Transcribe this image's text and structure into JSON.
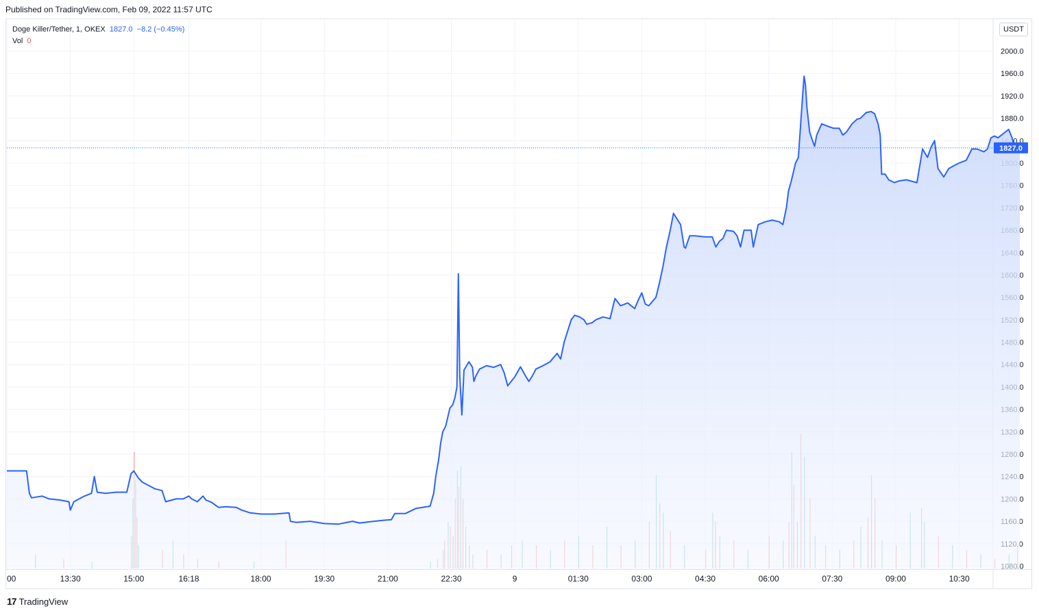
{
  "header": {
    "published_text": "Published on TradingView.com, Feb 09, 2022 11:57 UTC"
  },
  "legend": {
    "symbol": "Doge Killer/Tether, 1, OKEX",
    "last": "1827.0",
    "change": "−8.2 (−0.45%)",
    "vol_label": "Vol",
    "vol_value": "0"
  },
  "unit_button": "USDT",
  "footer": {
    "logo": "17",
    "brand": "TradingView"
  },
  "colors": {
    "line": "#2962ff",
    "area_top": "#c9d8fb",
    "area_bottom": "#f3f6ff",
    "vol_up": "#26a69a",
    "vol_down": "#ef5350",
    "grid": "#f0f3fa",
    "price_label_bg": "#2962ff"
  },
  "chart_data": {
    "type": "area",
    "title": "Doge Killer/Tether, 1, OKEX",
    "ylabel": "USDT",
    "ylim": [
      1080,
      2010
    ],
    "y_ticks": [
      1080.0,
      1120.0,
      1160.0,
      1200.0,
      1240.0,
      1280.0,
      1320.0,
      1360.0,
      1400.0,
      1440.0,
      1480.0,
      1520.0,
      1560.0,
      1600.0,
      1640.0,
      1680.0,
      1720.0,
      1760.0,
      1800.0,
      1840.0,
      1880.0,
      1920.0,
      1960.0,
      2000.0
    ],
    "y_tick_labels": [
      "1080.0",
      "1120.0",
      "1160.0",
      "1200.0",
      "1240.0",
      "1280.0",
      "1320.0",
      "1360.0",
      "1400.0",
      "1440.0",
      "1480.0",
      "1520.0",
      "1560.0",
      "1600.0",
      "1640.0",
      "1680.0",
      "1720.0",
      "1760.0",
      "1800.0",
      "1840.0",
      "1880.0",
      "1920.0",
      "1960.0",
      "2000.0"
    ],
    "x_unit": "minutes since Feb 08 12:00 UTC",
    "xlim": [
      0,
      1397
    ],
    "x_ticks": [
      {
        "t": 0,
        "label": "00"
      },
      {
        "t": 90,
        "label": "13:30"
      },
      {
        "t": 180,
        "label": "15:00"
      },
      {
        "t": 258,
        "label": "16:18"
      },
      {
        "t": 360,
        "label": "18:00"
      },
      {
        "t": 450,
        "label": "19:30"
      },
      {
        "t": 540,
        "label": "21:00"
      },
      {
        "t": 630,
        "label": "22:30"
      },
      {
        "t": 720,
        "label": "9"
      },
      {
        "t": 810,
        "label": "01:30"
      },
      {
        "t": 900,
        "label": "03:00"
      },
      {
        "t": 990,
        "label": "04:30"
      },
      {
        "t": 1080,
        "label": "06:00"
      },
      {
        "t": 1170,
        "label": "07:30"
      },
      {
        "t": 1260,
        "label": "09:00"
      },
      {
        "t": 1350,
        "label": "10:30"
      }
    ],
    "last_price": 1827.0,
    "last_price_label": "1827.0",
    "series": [
      {
        "points": [
          [
            0,
            1250
          ],
          [
            15,
            1250
          ],
          [
            28,
            1250
          ],
          [
            32,
            1210
          ],
          [
            35,
            1202
          ],
          [
            50,
            1205
          ],
          [
            60,
            1200
          ],
          [
            75,
            1198
          ],
          [
            88,
            1195
          ],
          [
            90,
            1180
          ],
          [
            95,
            1195
          ],
          [
            110,
            1205
          ],
          [
            120,
            1210
          ],
          [
            124,
            1240
          ],
          [
            128,
            1212
          ],
          [
            140,
            1210
          ],
          [
            155,
            1212
          ],
          [
            170,
            1212
          ],
          [
            176,
            1245
          ],
          [
            180,
            1250
          ],
          [
            186,
            1238
          ],
          [
            192,
            1230
          ],
          [
            210,
            1218
          ],
          [
            220,
            1215
          ],
          [
            225,
            1195
          ],
          [
            240,
            1200
          ],
          [
            250,
            1200
          ],
          [
            258,
            1205
          ],
          [
            262,
            1200
          ],
          [
            270,
            1195
          ],
          [
            278,
            1205
          ],
          [
            282,
            1198
          ],
          [
            290,
            1194
          ],
          [
            300,
            1185
          ],
          [
            310,
            1186
          ],
          [
            325,
            1185
          ],
          [
            333,
            1180
          ],
          [
            345,
            1175
          ],
          [
            360,
            1173
          ],
          [
            380,
            1173
          ],
          [
            400,
            1175
          ],
          [
            402,
            1160
          ],
          [
            410,
            1158
          ],
          [
            430,
            1160
          ],
          [
            450,
            1156
          ],
          [
            470,
            1155
          ],
          [
            490,
            1160
          ],
          [
            500,
            1157
          ],
          [
            520,
            1160
          ],
          [
            535,
            1162
          ],
          [
            545,
            1163
          ],
          [
            550,
            1174
          ],
          [
            565,
            1174
          ],
          [
            580,
            1183
          ],
          [
            595,
            1186
          ],
          [
            600,
            1187
          ],
          [
            605,
            1210
          ],
          [
            608,
            1240
          ],
          [
            612,
            1270
          ],
          [
            615,
            1300
          ],
          [
            618,
            1320
          ],
          [
            622,
            1330
          ],
          [
            628,
            1362
          ],
          [
            632,
            1368
          ],
          [
            635,
            1380
          ],
          [
            638,
            1400
          ],
          [
            640,
            1602
          ],
          [
            642,
            1420
          ],
          [
            645,
            1350
          ],
          [
            648,
            1430
          ],
          [
            655,
            1445
          ],
          [
            660,
            1435
          ],
          [
            662,
            1410
          ],
          [
            665,
            1420
          ],
          [
            670,
            1432
          ],
          [
            680,
            1438
          ],
          [
            690,
            1435
          ],
          [
            700,
            1440
          ],
          [
            705,
            1425
          ],
          [
            710,
            1402
          ],
          [
            715,
            1410
          ],
          [
            720,
            1418
          ],
          [
            728,
            1436
          ],
          [
            735,
            1420
          ],
          [
            740,
            1410
          ],
          [
            745,
            1420
          ],
          [
            750,
            1432
          ],
          [
            760,
            1438
          ],
          [
            770,
            1445
          ],
          [
            780,
            1460
          ],
          [
            785,
            1450
          ],
          [
            790,
            1480
          ],
          [
            795,
            1500
          ],
          [
            800,
            1520
          ],
          [
            805,
            1528
          ],
          [
            812,
            1525
          ],
          [
            818,
            1520
          ],
          [
            822,
            1512
          ],
          [
            830,
            1515
          ],
          [
            835,
            1520
          ],
          [
            845,
            1525
          ],
          [
            855,
            1522
          ],
          [
            862,
            1558
          ],
          [
            870,
            1545
          ],
          [
            880,
            1550
          ],
          [
            890,
            1540
          ],
          [
            895,
            1555
          ],
          [
            900,
            1568
          ],
          [
            905,
            1548
          ],
          [
            910,
            1545
          ],
          [
            920,
            1560
          ],
          [
            925,
            1585
          ],
          [
            930,
            1615
          ],
          [
            935,
            1650
          ],
          [
            940,
            1678
          ],
          [
            945,
            1710
          ],
          [
            950,
            1700
          ],
          [
            955,
            1690
          ],
          [
            960,
            1650
          ],
          [
            962,
            1648
          ],
          [
            968,
            1670
          ],
          [
            975,
            1670
          ],
          [
            990,
            1668
          ],
          [
            1000,
            1668
          ],
          [
            1005,
            1650
          ],
          [
            1010,
            1660
          ],
          [
            1015,
            1665
          ],
          [
            1020,
            1680
          ],
          [
            1030,
            1678
          ],
          [
            1035,
            1670
          ],
          [
            1040,
            1650
          ],
          [
            1045,
            1680
          ],
          [
            1055,
            1680
          ],
          [
            1058,
            1650
          ],
          [
            1065,
            1690
          ],
          [
            1075,
            1695
          ],
          [
            1085,
            1698
          ],
          [
            1095,
            1695
          ],
          [
            1100,
            1690
          ],
          [
            1105,
            1720
          ],
          [
            1108,
            1750
          ],
          [
            1112,
            1768
          ],
          [
            1118,
            1800
          ],
          [
            1122,
            1810
          ],
          [
            1128,
            1920
          ],
          [
            1130,
            1955
          ],
          [
            1132,
            1940
          ],
          [
            1134,
            1900
          ],
          [
            1138,
            1855
          ],
          [
            1142,
            1840
          ],
          [
            1145,
            1830
          ],
          [
            1148,
            1850
          ],
          [
            1155,
            1870
          ],
          [
            1165,
            1865
          ],
          [
            1172,
            1862
          ],
          [
            1180,
            1862
          ],
          [
            1185,
            1850
          ],
          [
            1190,
            1855
          ],
          [
            1198,
            1870
          ],
          [
            1205,
            1878
          ],
          [
            1210,
            1880
          ],
          [
            1218,
            1890
          ],
          [
            1225,
            1892
          ],
          [
            1230,
            1888
          ],
          [
            1235,
            1870
          ],
          [
            1238,
            1850
          ],
          [
            1240,
            1780
          ],
          [
            1245,
            1780
          ],
          [
            1250,
            1770
          ],
          [
            1258,
            1765
          ],
          [
            1265,
            1768
          ],
          [
            1275,
            1770
          ],
          [
            1290,
            1765
          ],
          [
            1298,
            1825
          ],
          [
            1305,
            1810
          ],
          [
            1310,
            1828
          ],
          [
            1315,
            1840
          ],
          [
            1320,
            1790
          ],
          [
            1328,
            1775
          ],
          [
            1335,
            1790
          ],
          [
            1342,
            1795
          ],
          [
            1350,
            1800
          ],
          [
            1360,
            1805
          ],
          [
            1368,
            1825
          ],
          [
            1375,
            1825
          ],
          [
            1385,
            1820
          ],
          [
            1390,
            1825
          ],
          [
            1395,
            1845
          ],
          [
            1400,
            1848
          ],
          [
            1405,
            1845
          ],
          [
            1415,
            1855
          ],
          [
            1420,
            1860
          ],
          [
            1425,
            1845
          ],
          [
            1428,
            1830
          ],
          [
            1432,
            1820
          ],
          [
            1436,
            1827
          ]
        ]
      }
    ],
    "volume": {
      "bars": [
        [
          40,
          6
        ],
        [
          80,
          4
        ],
        [
          120,
          3
        ],
        [
          176,
          14
        ],
        [
          178,
          30
        ],
        [
          180,
          50
        ],
        [
          182,
          38
        ],
        [
          184,
          22
        ],
        [
          186,
          10
        ],
        [
          220,
          8
        ],
        [
          235,
          12
        ],
        [
          250,
          6
        ],
        [
          270,
          4
        ],
        [
          300,
          3
        ],
        [
          350,
          3
        ],
        [
          395,
          12
        ],
        [
          600,
          3
        ],
        [
          610,
          4
        ],
        [
          618,
          8
        ],
        [
          620,
          12
        ],
        [
          625,
          20
        ],
        [
          628,
          18
        ],
        [
          632,
          14
        ],
        [
          635,
          30
        ],
        [
          638,
          42
        ],
        [
          640,
          35
        ],
        [
          643,
          44
        ],
        [
          646,
          30
        ],
        [
          650,
          18
        ],
        [
          655,
          10
        ],
        [
          660,
          6
        ],
        [
          680,
          8
        ],
        [
          700,
          6
        ],
        [
          715,
          10
        ],
        [
          730,
          12
        ],
        [
          750,
          10
        ],
        [
          770,
          8
        ],
        [
          790,
          12
        ],
        [
          810,
          14
        ],
        [
          830,
          10
        ],
        [
          850,
          18
        ],
        [
          870,
          10
        ],
        [
          890,
          12
        ],
        [
          910,
          20
        ],
        [
          920,
          40
        ],
        [
          925,
          28
        ],
        [
          930,
          24
        ],
        [
          940,
          16
        ],
        [
          960,
          10
        ],
        [
          990,
          8
        ],
        [
          1000,
          24
        ],
        [
          1004,
          20
        ],
        [
          1010,
          14
        ],
        [
          1030,
          12
        ],
        [
          1050,
          8
        ],
        [
          1080,
          14
        ],
        [
          1100,
          12
        ],
        [
          1108,
          20
        ],
        [
          1112,
          50
        ],
        [
          1115,
          36
        ],
        [
          1120,
          20
        ],
        [
          1125,
          58
        ],
        [
          1130,
          48
        ],
        [
          1138,
          30
        ],
        [
          1145,
          14
        ],
        [
          1160,
          10
        ],
        [
          1180,
          8
        ],
        [
          1200,
          12
        ],
        [
          1210,
          18
        ],
        [
          1220,
          22
        ],
        [
          1225,
          40
        ],
        [
          1230,
          30
        ],
        [
          1240,
          12
        ],
        [
          1260,
          10
        ],
        [
          1280,
          24
        ],
        [
          1296,
          26
        ],
        [
          1300,
          20
        ],
        [
          1320,
          14
        ],
        [
          1340,
          10
        ],
        [
          1360,
          8
        ],
        [
          1380,
          6
        ],
        [
          1400,
          4
        ],
        [
          1420,
          6
        ],
        [
          1432,
          10
        ]
      ]
    }
  }
}
